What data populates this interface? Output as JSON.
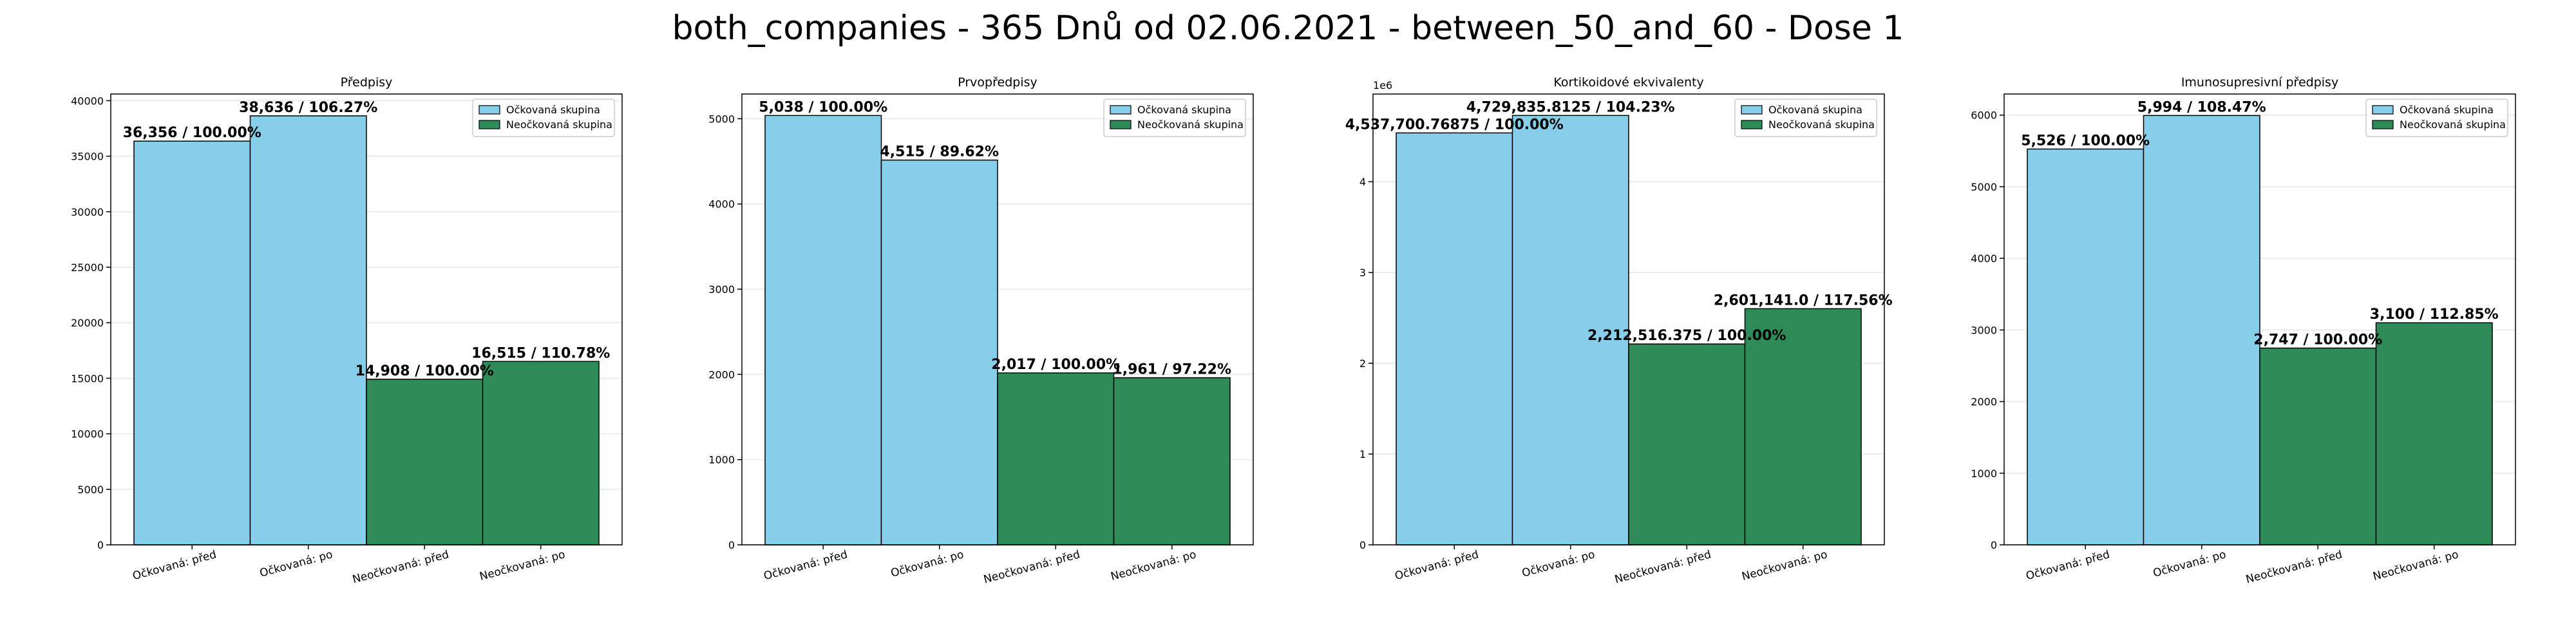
{
  "figure": {
    "title": "both_companies - 365 Dnů od 02.06.2021 - between_50_and_60 - Dose 1"
  },
  "colors": {
    "vaccinated": "#87CEEB",
    "unvaccinated": "#2E8B57",
    "edge": "#000000",
    "grid": "#e6e6e6"
  },
  "chart_data": [
    {
      "type": "bar",
      "title": "Předpisy",
      "categories": [
        "Očkovaná: před",
        "Očkovaná: po",
        "Neočkovaná: před",
        "Neočkovaná: po"
      ],
      "values": [
        36356,
        38636,
        14908,
        16515
      ],
      "labels": [
        "36,356 / 100.00%",
        "38,636 / 106.27%",
        "14,908 / 100.00%",
        "16,515 / 110.78%"
      ],
      "ylim": [
        0,
        40600
      ],
      "yticks": [
        0,
        5000,
        10000,
        15000,
        20000,
        25000,
        30000,
        35000,
        40000
      ],
      "ytick_labels": [
        "0",
        "5000",
        "10000",
        "15000",
        "20000",
        "25000",
        "30000",
        "35000",
        "40000"
      ],
      "offset_text": "",
      "legend": [
        "Očkovaná skupina",
        "Neočkovaná skupina"
      ],
      "legend_position": "top-right",
      "grid": true
    },
    {
      "type": "bar",
      "title": "Prvopředpisy",
      "categories": [
        "Očkovaná: před",
        "Očkovaná: po",
        "Neočkovaná: před",
        "Neočkovaná: po"
      ],
      "values": [
        5038,
        4515,
        2017,
        1961
      ],
      "labels": [
        "5,038 / 100.00%",
        "4,515 / 89.62%",
        "2,017 / 100.00%",
        "1,961 / 97.22%"
      ],
      "ylim": [
        0,
        5290
      ],
      "yticks": [
        0,
        1000,
        2000,
        3000,
        4000,
        5000
      ],
      "ytick_labels": [
        "0",
        "1000",
        "2000",
        "3000",
        "4000",
        "5000"
      ],
      "offset_text": "",
      "legend": [
        "Očkovaná skupina",
        "Neočkovaná skupina"
      ],
      "legend_position": "top-right",
      "grid": true
    },
    {
      "type": "bar",
      "title": "Kortikoidové ekvivalenty",
      "categories": [
        "Očkovaná: před",
        "Očkovaná: po",
        "Neočkovaná: před",
        "Neočkovaná: po"
      ],
      "values": [
        4537700.76875,
        4729835.8125,
        2212516.375,
        2601141.0
      ],
      "labels": [
        "4,537,700.76875 / 100.00%",
        "4,729,835.8125 / 104.23%",
        "2,212,516.375 / 100.00%",
        "2,601,141.0 / 117.56%"
      ],
      "ylim": [
        0,
        4966000
      ],
      "yticks": [
        0,
        1000000,
        2000000,
        3000000,
        4000000
      ],
      "ytick_labels": [
        "0",
        "1",
        "2",
        "3",
        "4"
      ],
      "offset_text": "1e6",
      "legend": [
        "Očkovaná skupina",
        "Neočkovaná skupina"
      ],
      "legend_position": "top-right",
      "grid": true
    },
    {
      "type": "bar",
      "title": "Imunosupresivní předpisy",
      "categories": [
        "Očkovaná: před",
        "Očkovaná: po",
        "Neočkovaná: před",
        "Neočkovaná: po"
      ],
      "values": [
        5526,
        5994,
        2747,
        3100
      ],
      "labels": [
        "5,526 / 100.00%",
        "5,994 / 108.47%",
        "2,747 / 100.00%",
        "3,100 / 112.85%"
      ],
      "ylim": [
        0,
        6294
      ],
      "yticks": [
        0,
        1000,
        2000,
        3000,
        4000,
        5000,
        6000
      ],
      "ytick_labels": [
        "0",
        "1000",
        "2000",
        "3000",
        "4000",
        "5000",
        "6000"
      ],
      "offset_text": "",
      "legend": [
        "Očkovaná skupina",
        "Neočkovaná skupina"
      ],
      "legend_position": "top-right",
      "grid": true
    }
  ]
}
